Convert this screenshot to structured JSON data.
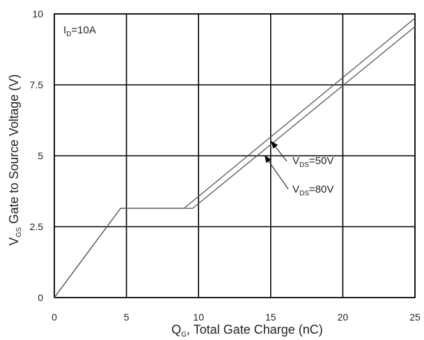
{
  "chart_data": {
    "type": "line",
    "xlabel": {
      "main": "Q",
      "sub": "G",
      "rest": ", Total Gate Charge (nC)"
    },
    "ylabel": {
      "main": "V",
      "sub": "GS",
      "rest": "  Gate to Source Voltage (V)"
    },
    "xlim": [
      0,
      25
    ],
    "ylim": [
      0,
      10
    ],
    "x_ticks": [
      0,
      5,
      10,
      15,
      20,
      25
    ],
    "x_tick_labels": [
      "0",
      "5",
      "10",
      "15",
      "20",
      "25"
    ],
    "y_ticks": [
      0,
      2.5,
      5,
      7.5,
      10
    ],
    "y_tick_labels": [
      "0",
      "2.5",
      "5",
      "7.5",
      "10"
    ],
    "grid": true,
    "condition": {
      "main": "I",
      "sub": "D",
      "rest": "=10A"
    },
    "series": [
      {
        "name": "VDS=50V",
        "label": {
          "main": "V",
          "sub": "DS",
          "rest": "=50V"
        },
        "x": [
          0,
          4.6,
          9.0,
          25
        ],
        "y": [
          0,
          3.15,
          3.15,
          9.85
        ]
      },
      {
        "name": "VDS=80V",
        "label": {
          "main": "V",
          "sub": "DS",
          "rest": "=80V"
        },
        "x": [
          0,
          4.6,
          9.6,
          25
        ],
        "y": [
          0,
          3.15,
          3.15,
          9.55
        ]
      }
    ],
    "annotations": [
      {
        "series": "VDS=50V",
        "point_x": 15.05,
        "point_y": 5.5
      },
      {
        "series": "VDS=80V",
        "point_x": 14.6,
        "point_y": 5.0
      }
    ]
  }
}
